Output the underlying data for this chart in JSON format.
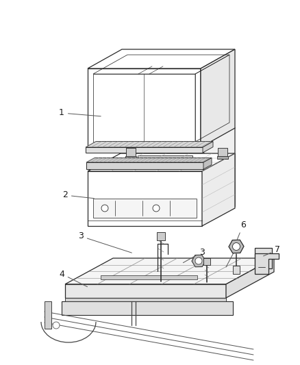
{
  "bg_color": "#ffffff",
  "line_color": "#2a2a2a",
  "label_color": "#1a1a1a",
  "fig_width": 4.38,
  "fig_height": 5.33,
  "dpi": 100,
  "font_size": 9,
  "lw": 0.9
}
